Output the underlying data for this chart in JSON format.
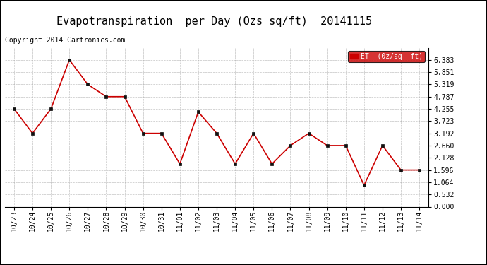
{
  "title": "Evapotranspiration  per Day (Ozs sq/ft)  20141115",
  "copyright": "Copyright 2014 Cartronics.com",
  "legend_label": "ET  (0z/sq  ft)",
  "x_labels": [
    "10/23",
    "10/24",
    "10/25",
    "10/26",
    "10/27",
    "10/28",
    "10/29",
    "10/30",
    "10/31",
    "11/01",
    "11/02",
    "11/03",
    "11/04",
    "11/05",
    "11/06",
    "11/07",
    "11/08",
    "11/09",
    "11/10",
    "11/11",
    "11/12",
    "11/13",
    "11/14"
  ],
  "y_values": [
    4.255,
    3.192,
    4.255,
    6.383,
    5.319,
    4.787,
    4.787,
    3.192,
    3.192,
    1.862,
    4.122,
    3.192,
    1.862,
    3.192,
    1.862,
    2.66,
    3.192,
    2.66,
    2.66,
    0.93,
    2.66,
    1.596,
    1.596
  ],
  "y_ticks": [
    0.0,
    0.532,
    1.064,
    1.596,
    2.128,
    2.66,
    3.192,
    3.723,
    4.255,
    4.787,
    5.319,
    5.851,
    6.383
  ],
  "y_min": 0.0,
  "y_max": 6.915,
  "line_color": "#cc0000",
  "marker_color": "#111111",
  "legend_bg": "#cc0000",
  "legend_text_color": "white",
  "title_fontsize": 11,
  "copyright_fontsize": 7,
  "tick_fontsize": 7,
  "bg_color": "#ffffff",
  "grid_color": "#aaaaaa",
  "border_color": "#000000"
}
